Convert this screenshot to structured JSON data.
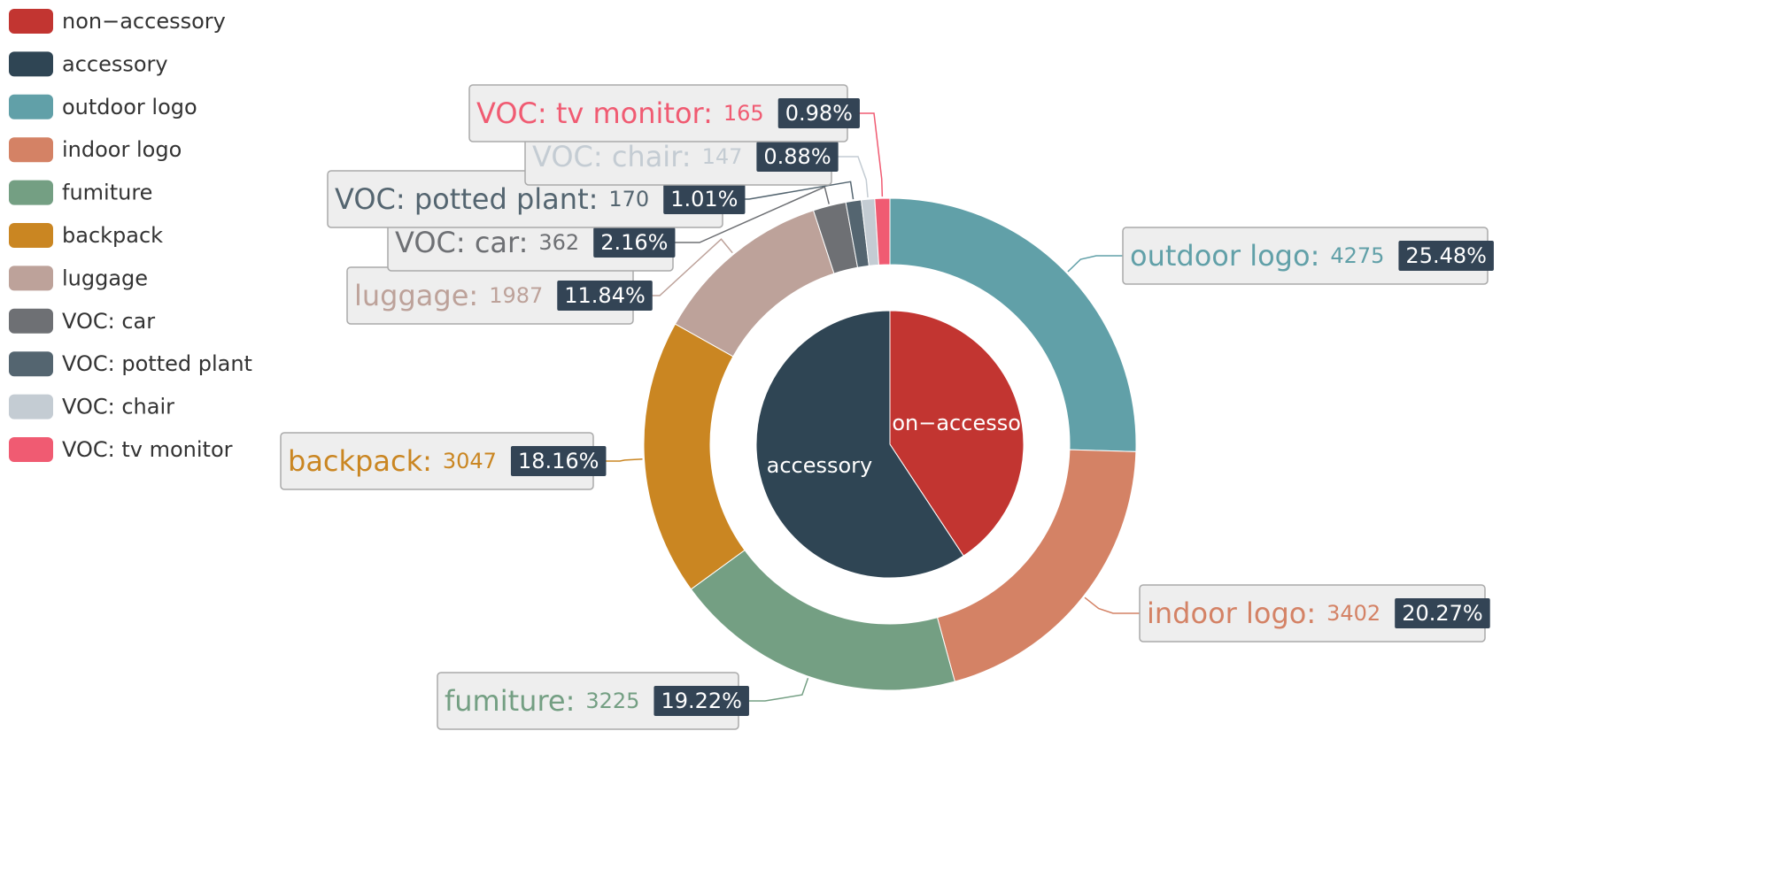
{
  "chart_data": {
    "type": "pie",
    "inner_series": [
      {
        "name": "non−accessory",
        "value": 6834,
        "color": "#c23531"
      },
      {
        "name": "accessory",
        "value": 9948,
        "color": "#2f4554"
      }
    ],
    "outer_series": [
      {
        "name": "outdoor logo",
        "value": 4275,
        "percent": "25.48%",
        "color": "#61a0a8"
      },
      {
        "name": "indoor logo",
        "value": 3402,
        "percent": "20.27%",
        "color": "#d48265"
      },
      {
        "name": "fumiture",
        "value": 3225,
        "percent": "19.22%",
        "color": "#749f83"
      },
      {
        "name": "backpack",
        "value": 3047,
        "percent": "18.16%",
        "color": "#ca8622"
      },
      {
        "name": "luggage",
        "value": 1987,
        "percent": "11.84%",
        "color": "#bda29a"
      },
      {
        "name": "VOC: car",
        "value": 362,
        "percent": "2.16%",
        "color": "#6e7074"
      },
      {
        "name": "VOC: potted plant",
        "value": 170,
        "percent": "1.01%",
        "color": "#546570"
      },
      {
        "name": "VOC: chair",
        "value": 147,
        "percent": "0.88%",
        "color": "#c4ccd3"
      },
      {
        "name": "VOC: tv monitor",
        "value": 165,
        "percent": "0.98%",
        "color": "#f05b72"
      }
    ],
    "legend": [
      {
        "name": "non−accessory",
        "color": "#c23531"
      },
      {
        "name": "accessory",
        "color": "#2f4554"
      },
      {
        "name": "outdoor logo",
        "color": "#61a0a8"
      },
      {
        "name": "indoor logo",
        "color": "#d48265"
      },
      {
        "name": "fumiture",
        "color": "#749f83"
      },
      {
        "name": "backpack",
        "color": "#ca8622"
      },
      {
        "name": "luggage",
        "color": "#bda29a"
      },
      {
        "name": "VOC: car",
        "color": "#6e7074"
      },
      {
        "name": "VOC: potted plant",
        "color": "#546570"
      },
      {
        "name": "VOC: chair",
        "color": "#c4ccd3"
      },
      {
        "name": "VOC: tv monitor",
        "color": "#f05b72"
      }
    ],
    "legend_position": "top-left",
    "label_box_color": "#eeeeee",
    "percent_badge_color": "#334455"
  }
}
